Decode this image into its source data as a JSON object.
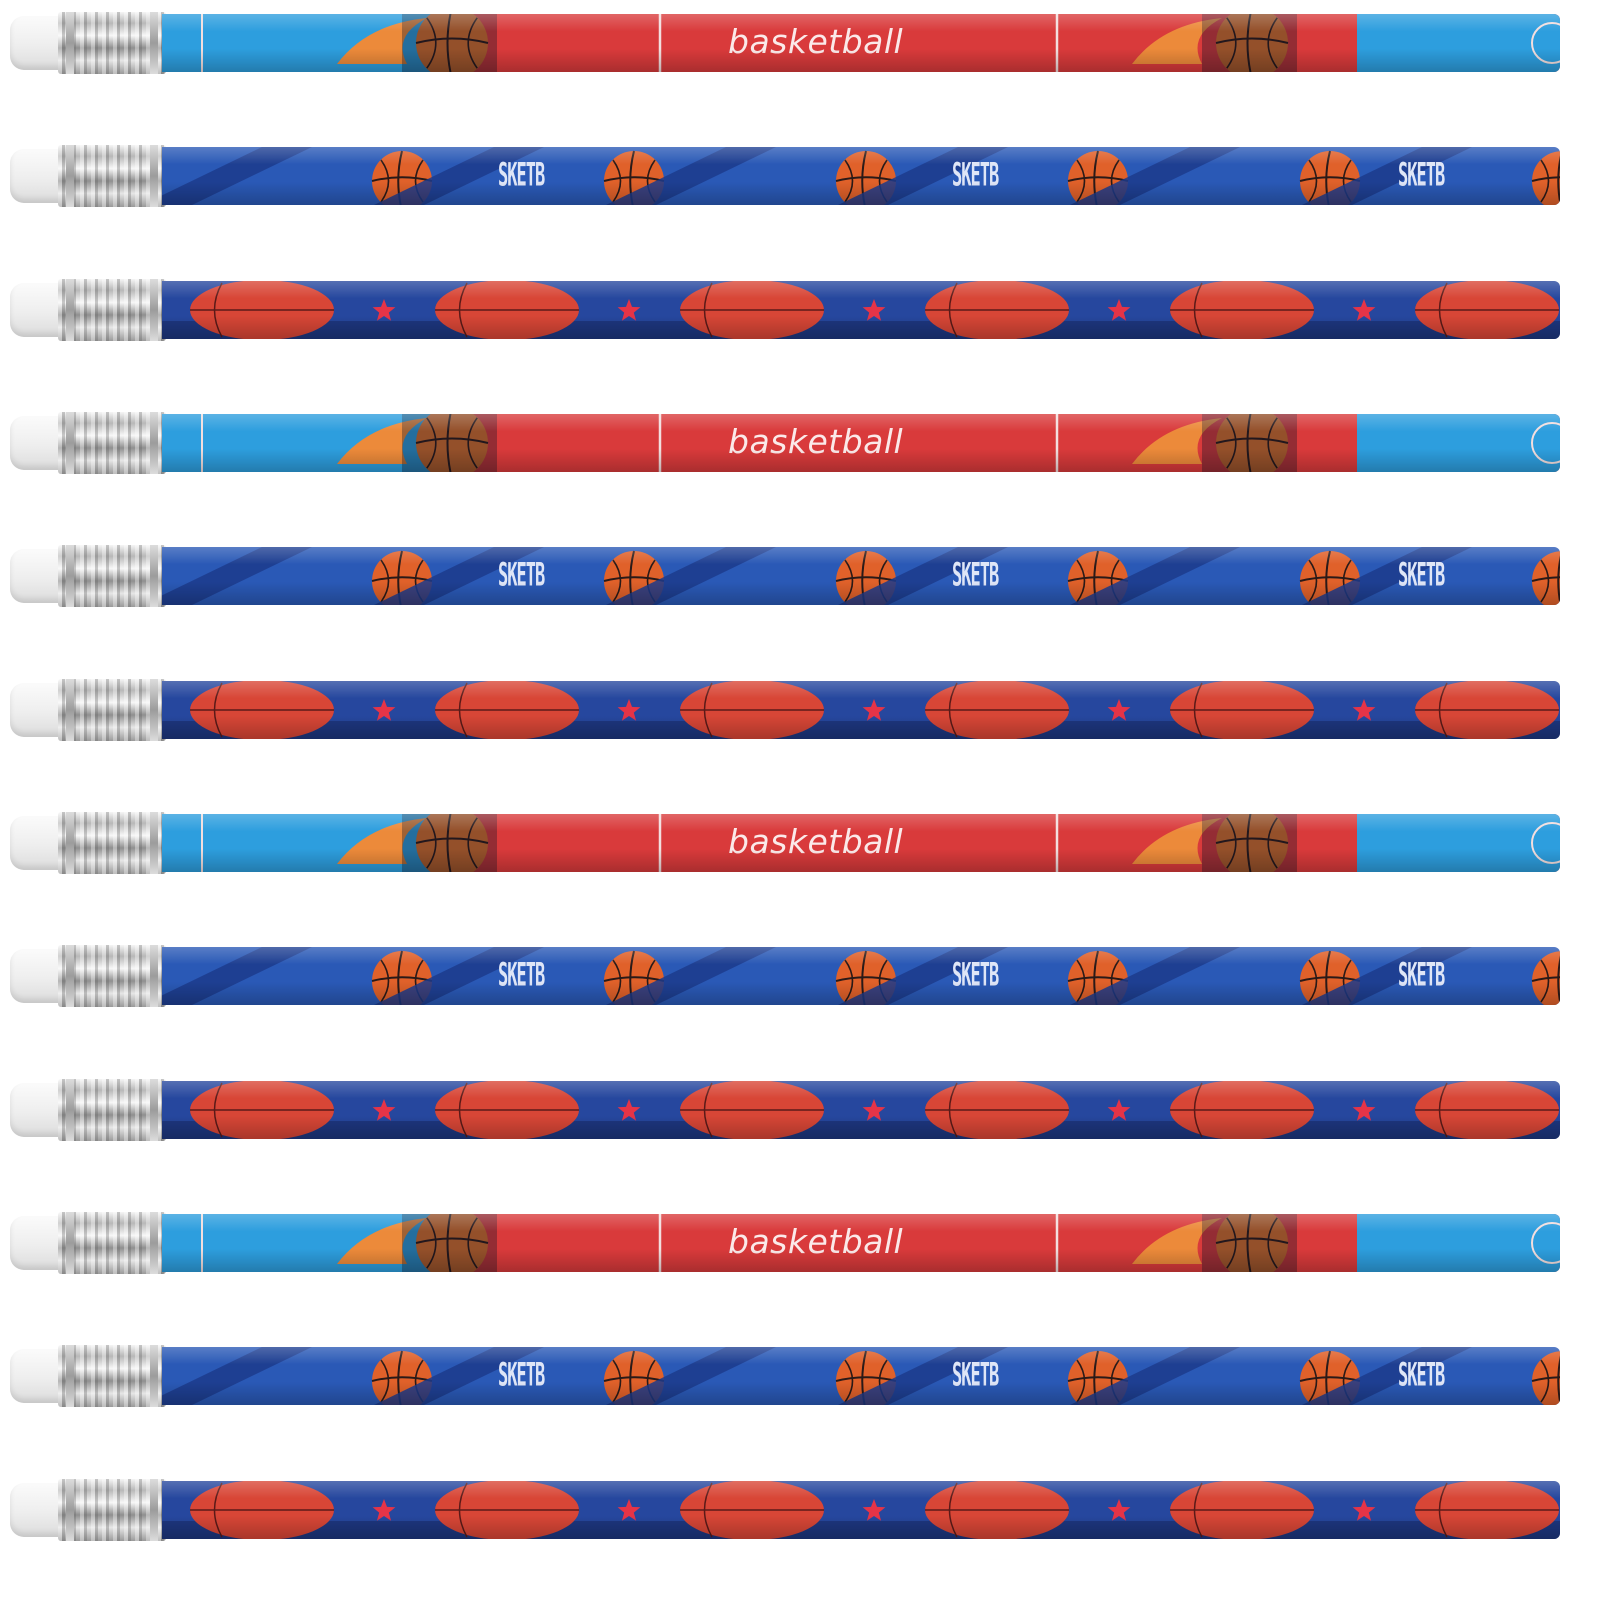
{
  "scene": {
    "background": "#ffffff",
    "pencil_count": 12,
    "pencil_variants": [
      "court",
      "flame-ball",
      "star-ball"
    ],
    "variant_order": [
      "court",
      "flame-ball",
      "star-ball",
      "court",
      "flame-ball",
      "star-ball",
      "court",
      "flame-ball",
      "star-ball",
      "court",
      "flame-ball",
      "star-ball"
    ]
  },
  "court": {
    "text": "basketball",
    "colors": {
      "sky": "#2d9ede",
      "red": "#d93a3b",
      "line": "#f3dede",
      "flame": "#ec8a3a"
    }
  },
  "flame_ball": {
    "text": "SKETB",
    "colors": {
      "base": "#2a59b6",
      "dark": "#1c3b8c",
      "ball": "#e0612a",
      "text": "#dfe6f7"
    }
  },
  "star_ball": {
    "colors": {
      "base": "#26479e",
      "dark": "#1a2f72",
      "ball": "#d84636",
      "star": "#e53447"
    }
  }
}
